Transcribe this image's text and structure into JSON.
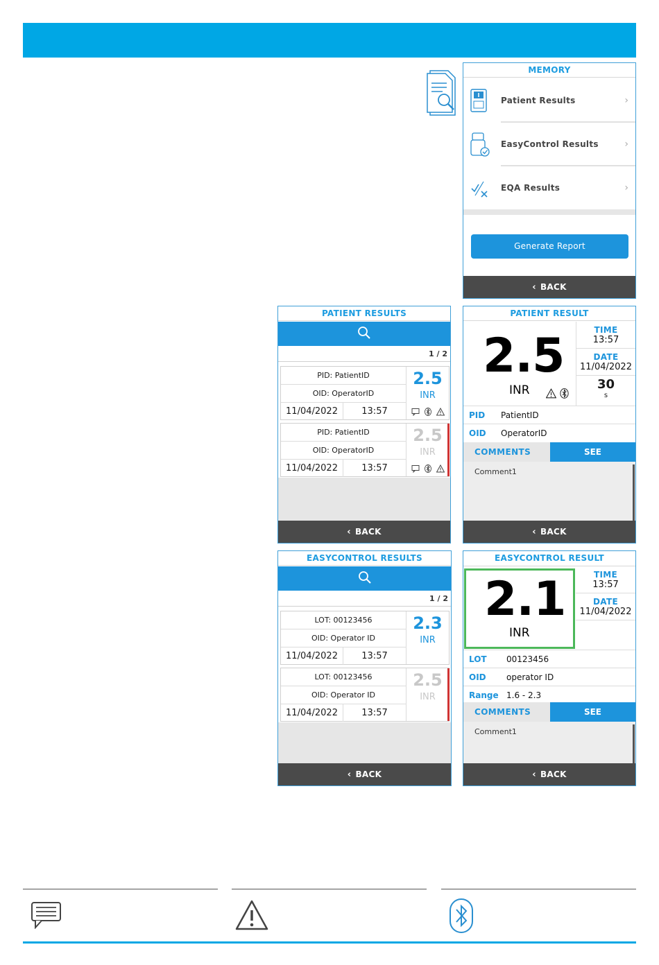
{
  "colors": {
    "accent": "#00a7e5",
    "button": "#1d94dc",
    "back_bar": "#4a4a4a",
    "flag_red": "#d03434",
    "control_ok": "#4cb85a"
  },
  "memory": {
    "title": "MEMORY",
    "items": [
      {
        "label": "Patient Results",
        "icon": "patient-results-icon"
      },
      {
        "label": "EasyControl Results",
        "icon": "easycontrol-icon"
      },
      {
        "label": "EQA Results",
        "icon": "eqa-icon"
      }
    ],
    "generate_label": "Generate Report",
    "back_label": "BACK"
  },
  "patient_results": {
    "title": "PATIENT RESULTS",
    "pager": "1 / 2",
    "rows": [
      {
        "pid": "PID: PatientID",
        "oid": "OID: OperatorID",
        "date": "11/04/2022",
        "time": "13:57",
        "value": "2.5",
        "unit": "INR"
      },
      {
        "pid": "PID: PatientID",
        "oid": "OID: OperatorID",
        "date": "11/04/2022",
        "time": "13:57",
        "value": "2.5",
        "unit": "INR"
      }
    ],
    "back_label": "BACK"
  },
  "patient_result": {
    "title": "PATIENT RESULT",
    "value": "2.5",
    "unit": "INR",
    "time_label": "TIME",
    "time": "13:57",
    "date_label": "DATE",
    "date": "11/04/2022",
    "seconds": "30",
    "seconds_unit": "s",
    "pid_label": "PID",
    "pid": "PatientID",
    "oid_label": "OID",
    "oid": "OperatorID",
    "comments_label": "COMMENTS",
    "see_label": "SEE",
    "comment": "Comment1",
    "back_label": "BACK"
  },
  "easycontrol_results": {
    "title": "EASYCONTROL RESULTS",
    "pager": "1 / 2",
    "rows": [
      {
        "lot": "LOT: 00123456",
        "oid": "OID: Operator ID",
        "date": "11/04/2022",
        "time": "13:57",
        "value": "2.3",
        "unit": "INR"
      },
      {
        "lot": "LOT: 00123456",
        "oid": "OID: Operator ID",
        "date": "11/04/2022",
        "time": "13:57",
        "value": "2.5",
        "unit": "INR"
      }
    ],
    "back_label": "BACK"
  },
  "easycontrol_result": {
    "title": "EASYCONTROL RESULT",
    "value": "2.1",
    "unit": "INR",
    "time_label": "TIME",
    "time": "13:57",
    "date_label": "DATE",
    "date": "11/04/2022",
    "lot_label": "LOT",
    "lot": "00123456",
    "oid_label": "OID",
    "oid": "operator ID",
    "range_label": "Range",
    "range": "1.6 - 2.3",
    "comments_label": "COMMENTS",
    "see_label": "SEE",
    "comment": "Comment1",
    "back_label": "BACK"
  },
  "legend_icons": [
    "comment-icon",
    "warning-icon",
    "bluetooth-icon"
  ]
}
